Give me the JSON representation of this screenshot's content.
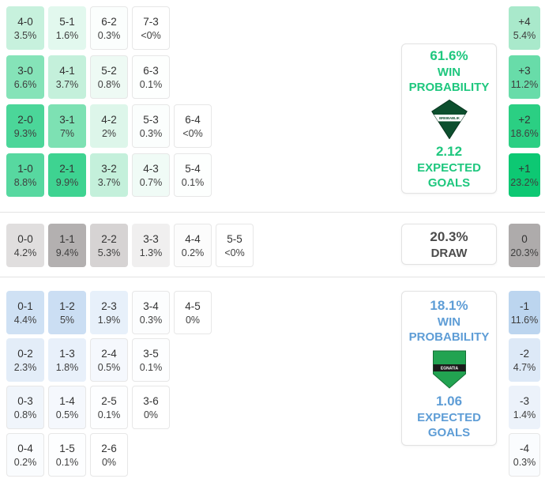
{
  "chart_data": {
    "type": "heatmap",
    "sections": [
      {
        "id": "home-win",
        "label": "home win probabilities",
        "accent": "#1ec77e",
        "rows": [
          [
            {
              "s": "4-0",
              "p": "3.5%",
              "bg": "#c7f1dd"
            },
            {
              "s": "5-1",
              "p": "1.6%",
              "bg": "#e2f8ee"
            },
            {
              "s": "6-2",
              "p": "0.3%",
              "bg": "#fbfefd"
            },
            {
              "s": "7-3",
              "p": "<0%",
              "bg": "#ffffff"
            }
          ],
          [
            {
              "s": "3-0",
              "p": "6.6%",
              "bg": "#85e3b8"
            },
            {
              "s": "4-1",
              "p": "3.7%",
              "bg": "#c4f0db"
            },
            {
              "s": "5-2",
              "p": "0.8%",
              "bg": "#eefaf4"
            },
            {
              "s": "6-3",
              "p": "0.1%",
              "bg": "#fdfffe"
            }
          ],
          [
            {
              "s": "2-0",
              "p": "9.3%",
              "bg": "#4bd699"
            },
            {
              "s": "3-1",
              "p": "7%",
              "bg": "#7de1b3"
            },
            {
              "s": "4-2",
              "p": "2%",
              "bg": "#ddf6ea"
            },
            {
              "s": "5-3",
              "p": "0.3%",
              "bg": "#fbfefd"
            },
            {
              "s": "6-4",
              "p": "<0%",
              "bg": "#ffffff"
            }
          ],
          [
            {
              "s": "1-0",
              "p": "8.8%",
              "bg": "#57d8a0"
            },
            {
              "s": "2-1",
              "p": "9.9%",
              "bg": "#3ed391"
            },
            {
              "s": "3-2",
              "p": "3.7%",
              "bg": "#c4f0db"
            },
            {
              "s": "4-3",
              "p": "0.7%",
              "bg": "#f0fbf6"
            },
            {
              "s": "5-4",
              "p": "0.1%",
              "bg": "#fdfffe"
            }
          ]
        ],
        "diff": [
          {
            "s": "+4",
            "p": "5.4%",
            "bg": "#a9e9cb"
          },
          {
            "s": "+3",
            "p": "11.2%",
            "bg": "#68dca9"
          },
          {
            "s": "+2",
            "p": "18.6%",
            "bg": "#2bcf83"
          },
          {
            "s": "+1",
            "p": "23.2%",
            "bg": "#0dc873"
          }
        ],
        "panel": {
          "headline": "61.6%",
          "label_line1": "WIN",
          "label_line2": "PROBABILITY",
          "team": "BREIÐABLIK",
          "value": "2.12",
          "value_label1": "EXPECTED",
          "value_label2": "GOALS"
        }
      },
      {
        "id": "draw",
        "label": "draw probabilities",
        "accent": "#4b4b4b",
        "rows": [
          [
            {
              "s": "0-0",
              "p": "4.2%",
              "bg": "#e0dede"
            },
            {
              "s": "1-1",
              "p": "9.4%",
              "bg": "#b3b0b0"
            },
            {
              "s": "2-2",
              "p": "5.3%",
              "bg": "#d6d3d3"
            },
            {
              "s": "3-3",
              "p": "1.3%",
              "bg": "#f0efef"
            },
            {
              "s": "4-4",
              "p": "0.2%",
              "bg": "#fcfcfc"
            },
            {
              "s": "5-5",
              "p": "<0%",
              "bg": "#ffffff"
            }
          ]
        ],
        "diff": [
          {
            "s": "0",
            "p": "20.3%",
            "bg": "#aeabab"
          }
        ],
        "panel": {
          "headline": "20.3%",
          "label_line1": "DRAW"
        }
      },
      {
        "id": "away-win",
        "label": "away win probabilities",
        "accent": "#5e9dd6",
        "rows": [
          [
            {
              "s": "0-1",
              "p": "4.4%",
              "bg": "#cfe1f4"
            },
            {
              "s": "1-2",
              "p": "5%",
              "bg": "#cbdef3"
            },
            {
              "s": "2-3",
              "p": "1.9%",
              "bg": "#e7f0fa"
            },
            {
              "s": "3-4",
              "p": "0.3%",
              "bg": "#fcfdfe"
            },
            {
              "s": "4-5",
              "p": "0%",
              "bg": "#ffffff"
            }
          ],
          [
            {
              "s": "0-2",
              "p": "2.3%",
              "bg": "#e3edf8"
            },
            {
              "s": "1-3",
              "p": "1.8%",
              "bg": "#e8f0fa"
            },
            {
              "s": "2-4",
              "p": "0.5%",
              "bg": "#f5f8fd"
            },
            {
              "s": "3-5",
              "p": "0.1%",
              "bg": "#fdfeff"
            }
          ],
          [
            {
              "s": "0-3",
              "p": "0.8%",
              "bg": "#f0f5fb"
            },
            {
              "s": "1-4",
              "p": "0.5%",
              "bg": "#f5f8fd"
            },
            {
              "s": "2-5",
              "p": "0.1%",
              "bg": "#fdfeff"
            },
            {
              "s": "3-6",
              "p": "0%",
              "bg": "#ffffff"
            }
          ],
          [
            {
              "s": "0-4",
              "p": "0.2%",
              "bg": "#fafcfe"
            },
            {
              "s": "1-5",
              "p": "0.1%",
              "bg": "#fdfeff"
            },
            {
              "s": "2-6",
              "p": "0%",
              "bg": "#ffffff"
            }
          ]
        ],
        "diff": [
          {
            "s": "-1",
            "p": "11.6%",
            "bg": "#bcd5ef"
          },
          {
            "s": "-2",
            "p": "4.7%",
            "bg": "#dde9f7"
          },
          {
            "s": "-3",
            "p": "1.4%",
            "bg": "#ecf2fa"
          },
          {
            "s": "-4",
            "p": "0.3%",
            "bg": "#fafcfe"
          }
        ],
        "panel": {
          "headline": "18.1%",
          "label_line1": "WIN",
          "label_line2": "PROBABILITY",
          "team": "EGNATIA",
          "value": "1.06",
          "value_label1": "EXPECTED",
          "value_label2": "GOALS"
        }
      }
    ]
  },
  "crest_colors": {
    "breidablik": "#0d4f2e",
    "egnatia_green": "#22a351",
    "egnatia_band": "#1b1b1b"
  }
}
